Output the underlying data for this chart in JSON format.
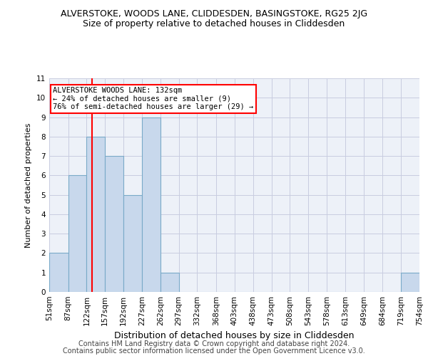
{
  "title": "ALVERSTOKE, WOODS LANE, CLIDDESDEN, BASINGSTOKE, RG25 2JG",
  "subtitle": "Size of property relative to detached houses in Cliddesden",
  "xlabel": "Distribution of detached houses by size in Cliddesden",
  "ylabel": "Number of detached properties",
  "bar_edges": [
    51,
    87,
    122,
    157,
    192,
    227,
    262,
    297,
    332,
    368,
    403,
    438,
    473,
    508,
    543,
    578,
    613,
    649,
    684,
    719,
    754
  ],
  "bar_heights": [
    2,
    6,
    8,
    7,
    5,
    9,
    1,
    0,
    0,
    0,
    0,
    0,
    0,
    0,
    0,
    0,
    0,
    0,
    0,
    1
  ],
  "bar_color": "#c8d8ec",
  "bar_edgecolor": "#7aaac8",
  "grid_color": "#c8cce0",
  "bg_color": "#edf1f8",
  "red_line_x": 132,
  "annotation_line1": "ALVERSTOKE WOODS LANE: 132sqm",
  "annotation_line2": "← 24% of detached houses are smaller (9)",
  "annotation_line3": "76% of semi-detached houses are larger (29) →",
  "annotation_box_edgecolor": "red",
  "red_line_color": "red",
  "ylim": [
    0,
    11
  ],
  "yticks": [
    0,
    1,
    2,
    3,
    4,
    5,
    6,
    7,
    8,
    9,
    10,
    11
  ],
  "footer1": "Contains HM Land Registry data © Crown copyright and database right 2024.",
  "footer2": "Contains public sector information licensed under the Open Government Licence v3.0.",
  "title_fontsize": 9,
  "subtitle_fontsize": 9,
  "xlabel_fontsize": 9,
  "ylabel_fontsize": 8,
  "tick_fontsize": 7.5,
  "annotation_fontsize": 7.5,
  "footer_fontsize": 7
}
